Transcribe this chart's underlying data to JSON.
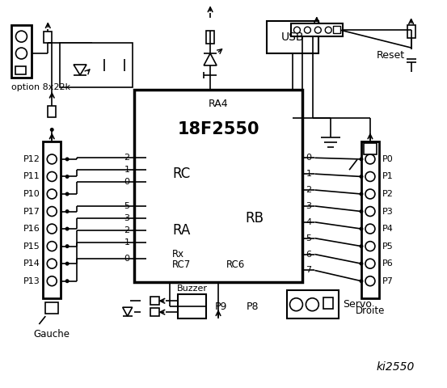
{
  "chip_label": "18F2550",
  "chip_sublabel": "RA4",
  "chip_rc_label": "RC",
  "chip_ra_label": "RA",
  "chip_rb_label": "RB",
  "chip_rx_label": "Rx",
  "chip_rc7_label": "RC7",
  "chip_rc6_label": "RC6",
  "left_connector_label": "Gauche",
  "right_connector_label": "Droite",
  "left_pins": [
    "P12",
    "P11",
    "P10",
    "P17",
    "P16",
    "P15",
    "P14",
    "P13"
  ],
  "right_pins": [
    "P0",
    "P1",
    "P2",
    "P3",
    "P4",
    "P5",
    "P6",
    "P7"
  ],
  "rc_pins": [
    "2",
    "1",
    "0"
  ],
  "ra_pins": [
    "5",
    "3",
    "2",
    "1",
    "0"
  ],
  "rb_pins": [
    "0",
    "1",
    "2",
    "3",
    "4",
    "5",
    "6",
    "7"
  ],
  "option_label": "option 8x22k",
  "usb_label": "USB",
  "reset_label": "Reset",
  "servo_label": "Servo",
  "buzzer_label": "Buzzer",
  "p9_label": "P9",
  "p8_label": "P8",
  "ki_label": "ki2550",
  "background_color": "#ffffff",
  "line_color": "#000000",
  "text_color": "#000000"
}
